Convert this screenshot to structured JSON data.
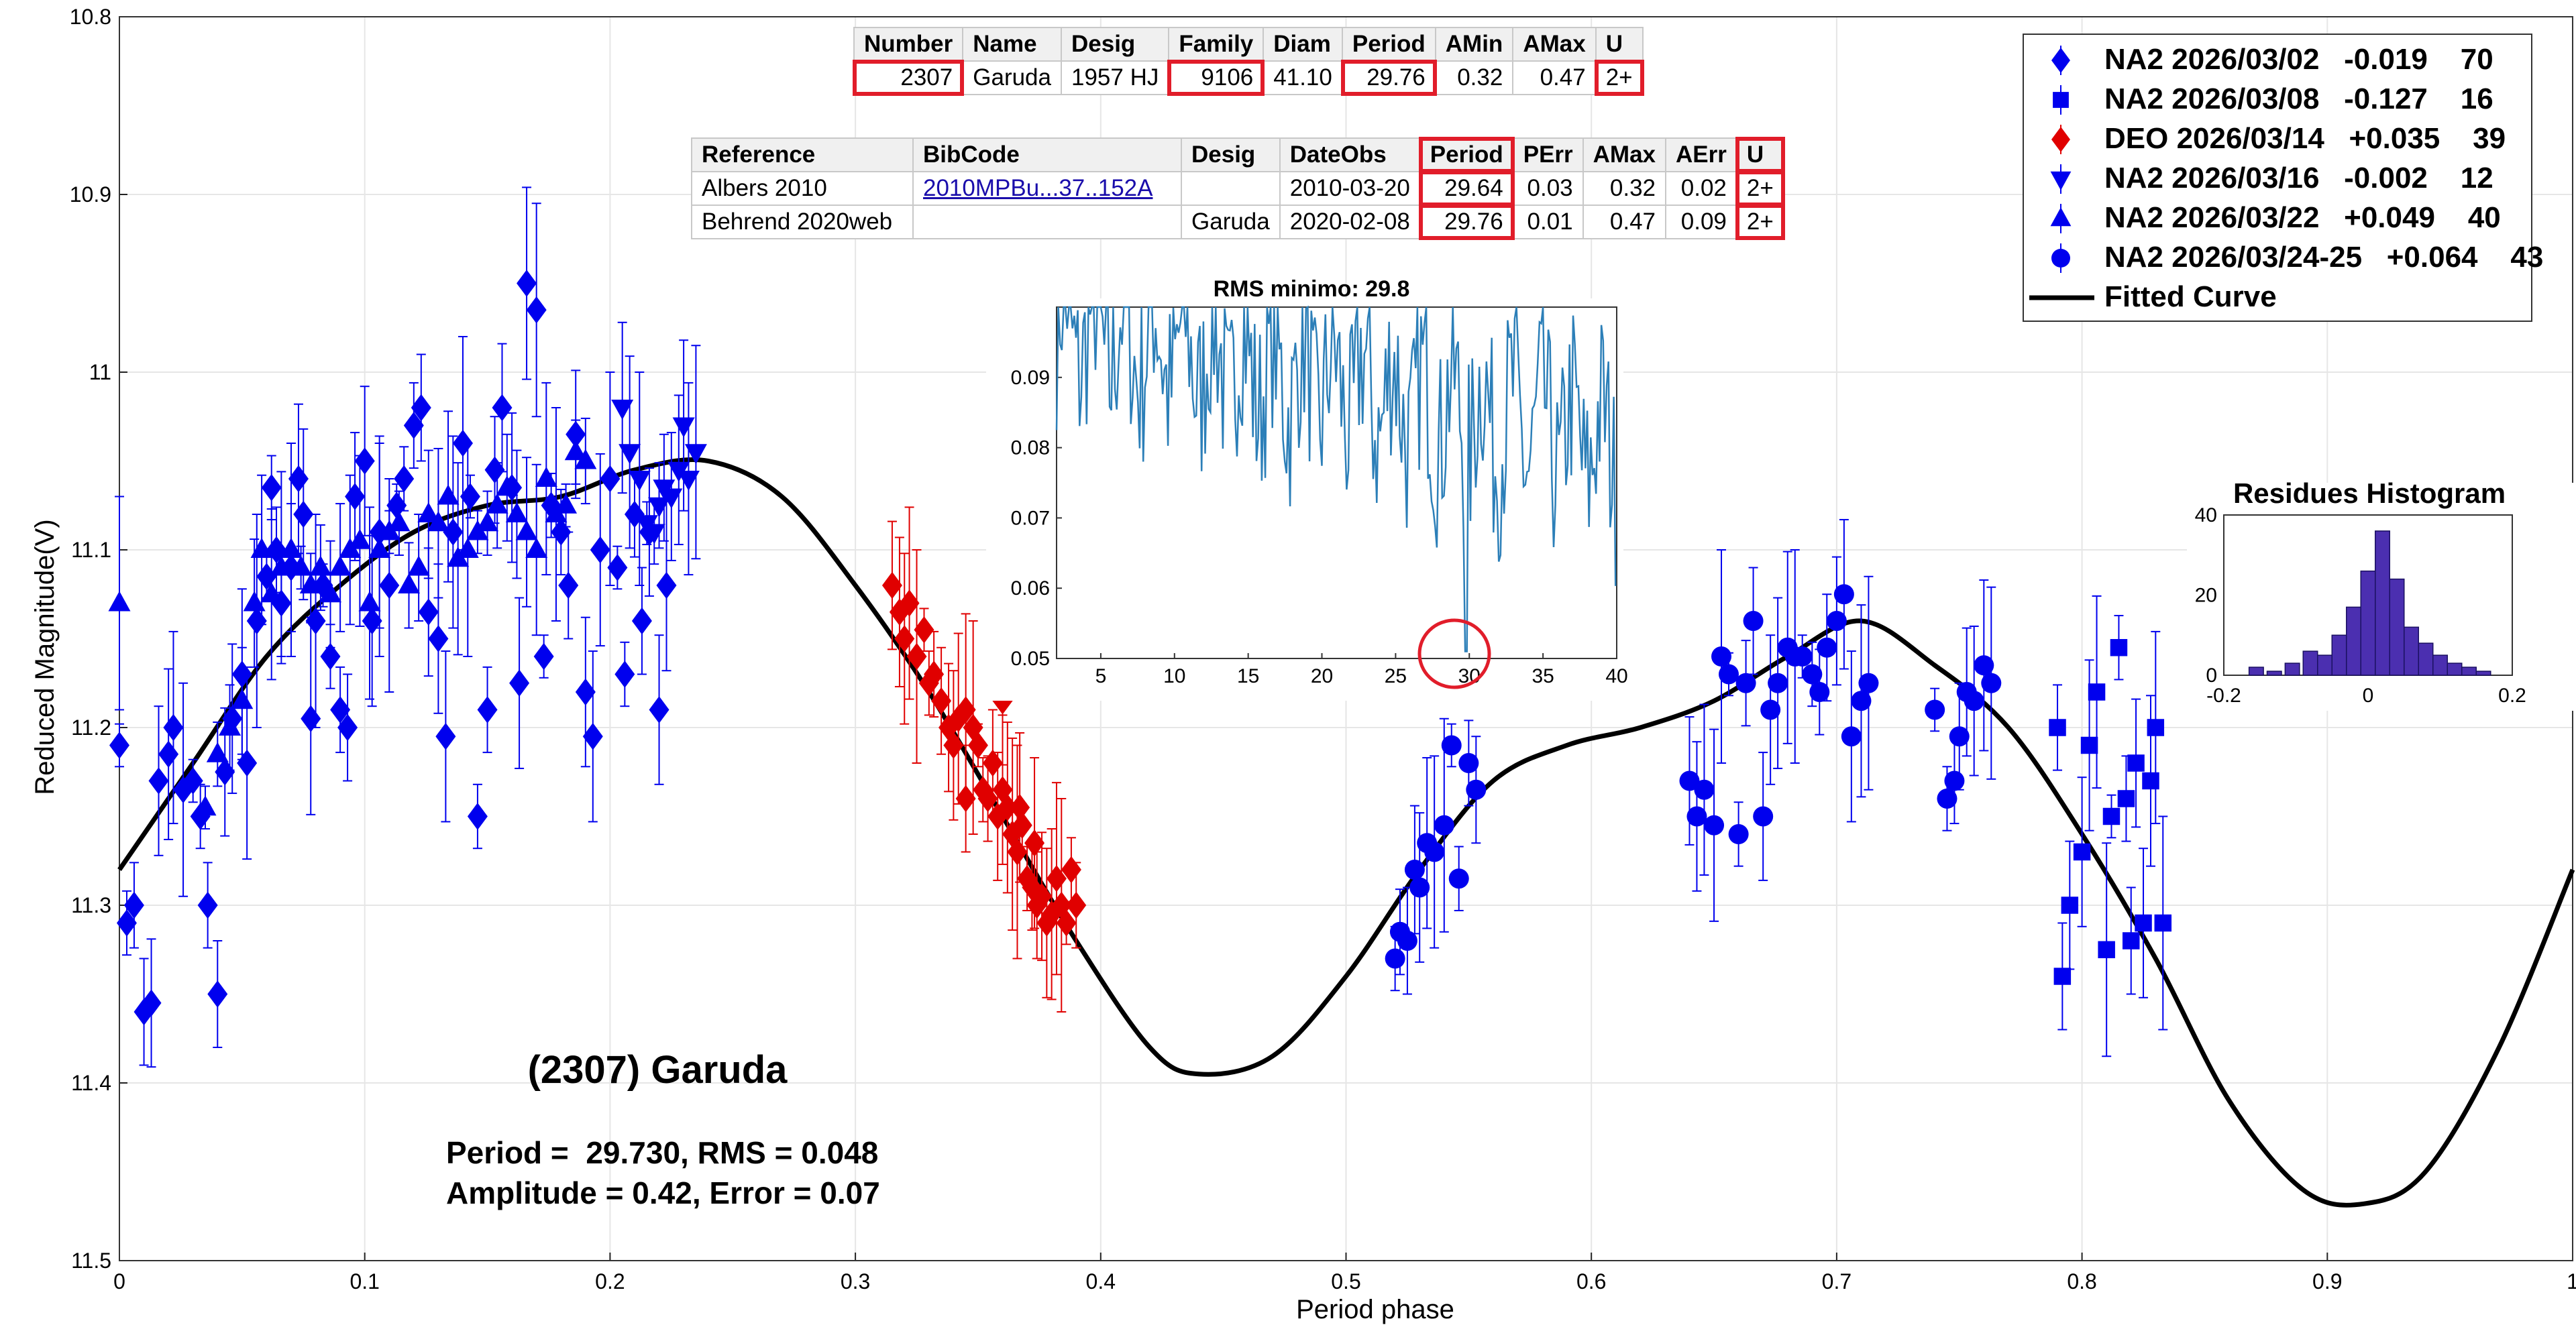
{
  "chart_data": {
    "type": "scatter",
    "title": "(2307) Garuda",
    "xlabel": "Period phase",
    "ylabel": "Reduced Magnitude(V)",
    "xlim": [
      0,
      1
    ],
    "ylim": [
      11.5,
      10.8
    ],
    "x_ticks": [
      "0",
      "0.1",
      "0.2",
      "0.3",
      "0.4",
      "0.5",
      "0.6",
      "0.7",
      "0.8",
      "0.9",
      "1"
    ],
    "y_ticks": [
      "10.8",
      "10.9",
      "11",
      "11.1",
      "11.2",
      "11.3",
      "11.4",
      "11.5"
    ],
    "stats_line1": "Period =  29.730, RMS = 0.048",
    "stats_line2": "Amplitude = 0.42, Error = 0.07",
    "fit": {
      "name": "Fitted Curve",
      "points": [
        [
          0,
          11.28
        ],
        [
          0.03,
          11.22
        ],
        [
          0.06,
          11.16
        ],
        [
          0.09,
          11.12
        ],
        [
          0.12,
          11.09
        ],
        [
          0.15,
          11.075
        ],
        [
          0.18,
          11.07
        ],
        [
          0.21,
          11.055
        ],
        [
          0.24,
          11.05
        ],
        [
          0.27,
          11.07
        ],
        [
          0.3,
          11.12
        ],
        [
          0.33,
          11.18
        ],
        [
          0.36,
          11.25
        ],
        [
          0.39,
          11.32
        ],
        [
          0.42,
          11.38
        ],
        [
          0.44,
          11.395
        ],
        [
          0.47,
          11.385
        ],
        [
          0.5,
          11.34
        ],
        [
          0.53,
          11.28
        ],
        [
          0.56,
          11.23
        ],
        [
          0.59,
          11.21
        ],
        [
          0.62,
          11.2
        ],
        [
          0.65,
          11.185
        ],
        [
          0.68,
          11.16
        ],
        [
          0.71,
          11.14
        ],
        [
          0.74,
          11.165
        ],
        [
          0.77,
          11.2
        ],
        [
          0.8,
          11.26
        ],
        [
          0.83,
          11.33
        ],
        [
          0.86,
          11.41
        ],
        [
          0.89,
          11.46
        ],
        [
          0.915,
          11.468
        ],
        [
          0.94,
          11.45
        ],
        [
          0.97,
          11.38
        ],
        [
          1.0,
          11.28
        ]
      ]
    },
    "series": [
      {
        "name": "NA2 2026/03/02",
        "offset": "-0.019",
        "n": "70",
        "marker": "diamond",
        "color": "#0000ee",
        "points": [
          [
            0.0,
            11.21
          ],
          [
            0.003,
            11.31
          ],
          [
            0.006,
            11.3
          ],
          [
            0.01,
            11.36
          ],
          [
            0.013,
            11.355
          ],
          [
            0.016,
            11.23
          ],
          [
            0.02,
            11.215
          ],
          [
            0.022,
            11.2
          ],
          [
            0.026,
            11.235
          ],
          [
            0.03,
            11.23
          ],
          [
            0.033,
            11.25
          ],
          [
            0.036,
            11.3
          ],
          [
            0.04,
            11.35
          ],
          [
            0.043,
            11.225
          ],
          [
            0.046,
            11.195
          ],
          [
            0.05,
            11.17
          ],
          [
            0.052,
            11.22
          ],
          [
            0.056,
            11.14
          ],
          [
            0.06,
            11.115
          ],
          [
            0.062,
            11.065
          ],
          [
            0.064,
            11.1
          ],
          [
            0.066,
            11.13
          ],
          [
            0.07,
            11.11
          ],
          [
            0.073,
            11.06
          ],
          [
            0.075,
            11.08
          ],
          [
            0.078,
            11.195
          ],
          [
            0.08,
            11.14
          ],
          [
            0.083,
            11.12
          ],
          [
            0.086,
            11.16
          ],
          [
            0.09,
            11.19
          ],
          [
            0.093,
            11.2
          ],
          [
            0.096,
            11.07
          ],
          [
            0.1,
            11.05
          ],
          [
            0.103,
            11.14
          ],
          [
            0.106,
            11.09
          ],
          [
            0.11,
            11.12
          ],
          [
            0.113,
            11.075
          ],
          [
            0.116,
            11.06
          ],
          [
            0.12,
            11.03
          ],
          [
            0.123,
            11.02
          ],
          [
            0.126,
            11.135
          ],
          [
            0.13,
            11.15
          ],
          [
            0.133,
            11.205
          ],
          [
            0.136,
            11.09
          ],
          [
            0.14,
            11.04
          ],
          [
            0.143,
            11.07
          ],
          [
            0.146,
            11.25
          ],
          [
            0.15,
            11.19
          ],
          [
            0.153,
            11.055
          ],
          [
            0.156,
            11.02
          ],
          [
            0.16,
            11.065
          ],
          [
            0.163,
            11.175
          ],
          [
            0.166,
            10.95
          ],
          [
            0.17,
            10.965
          ],
          [
            0.173,
            11.16
          ],
          [
            0.176,
            11.075
          ],
          [
            0.18,
            11.09
          ],
          [
            0.183,
            11.12
          ],
          [
            0.186,
            11.035
          ],
          [
            0.19,
            11.18
          ],
          [
            0.193,
            11.205
          ],
          [
            0.196,
            11.1
          ],
          [
            0.2,
            11.06
          ],
          [
            0.203,
            11.11
          ],
          [
            0.206,
            11.17
          ],
          [
            0.21,
            11.08
          ],
          [
            0.213,
            11.14
          ],
          [
            0.216,
            11.09
          ],
          [
            0.22,
            11.19
          ],
          [
            0.223,
            11.12
          ]
        ]
      },
      {
        "name": "NA2 2026/03/08",
        "offset": "-0.127",
        "n": "16",
        "marker": "square",
        "color": "#0000ee",
        "points": [
          [
            0.79,
            11.2
          ],
          [
            0.792,
            11.34
          ],
          [
            0.795,
            11.3
          ],
          [
            0.8,
            11.27
          ],
          [
            0.803,
            11.21
          ],
          [
            0.806,
            11.18
          ],
          [
            0.81,
            11.325
          ],
          [
            0.812,
            11.25
          ],
          [
            0.815,
            11.155
          ],
          [
            0.818,
            11.24
          ],
          [
            0.82,
            11.32
          ],
          [
            0.822,
            11.22
          ],
          [
            0.825,
            11.31
          ],
          [
            0.828,
            11.23
          ],
          [
            0.83,
            11.2
          ],
          [
            0.833,
            11.31
          ]
        ]
      },
      {
        "name": "DEO 2026/03/14",
        "offset": "+0.035",
        "n": "39",
        "marker": "diamond",
        "color": "#e00000",
        "points": [
          [
            0.315,
            11.12
          ],
          [
            0.318,
            11.135
          ],
          [
            0.32,
            11.15
          ],
          [
            0.322,
            11.13
          ],
          [
            0.325,
            11.16
          ],
          [
            0.328,
            11.145
          ],
          [
            0.33,
            11.175
          ],
          [
            0.332,
            11.17
          ],
          [
            0.335,
            11.185
          ],
          [
            0.338,
            11.2
          ],
          [
            0.34,
            11.21
          ],
          [
            0.342,
            11.195
          ],
          [
            0.345,
            11.19
          ],
          [
            0.348,
            11.2
          ],
          [
            0.35,
            11.21
          ],
          [
            0.352,
            11.235
          ],
          [
            0.354,
            11.24
          ],
          [
            0.356,
            11.22
          ],
          [
            0.358,
            11.25
          ],
          [
            0.36,
            11.235
          ],
          [
            0.362,
            11.245
          ],
          [
            0.364,
            11.26
          ],
          [
            0.366,
            11.27
          ],
          [
            0.368,
            11.255
          ],
          [
            0.37,
            11.285
          ],
          [
            0.372,
            11.29
          ],
          [
            0.374,
            11.3
          ],
          [
            0.376,
            11.295
          ],
          [
            0.378,
            11.31
          ],
          [
            0.38,
            11.305
          ],
          [
            0.382,
            11.285
          ],
          [
            0.384,
            11.3
          ],
          [
            0.386,
            11.31
          ],
          [
            0.388,
            11.28
          ],
          [
            0.39,
            11.3
          ],
          [
            0.345,
            11.24
          ],
          [
            0.36,
            11.185
          ],
          [
            0.367,
            11.245
          ],
          [
            0.373,
            11.265
          ]
        ]
      },
      {
        "name": "NA2 2026/03/16",
        "offset": "-0.002",
        "n": "12",
        "marker": "triangle-down",
        "color": "#0000ee",
        "points": [
          [
            0.205,
            11.02
          ],
          [
            0.208,
            11.045
          ],
          [
            0.212,
            11.06
          ],
          [
            0.215,
            11.085
          ],
          [
            0.218,
            11.09
          ],
          [
            0.22,
            11.075
          ],
          [
            0.222,
            11.065
          ],
          [
            0.225,
            11.07
          ],
          [
            0.228,
            11.055
          ],
          [
            0.23,
            11.03
          ],
          [
            0.232,
            11.06
          ],
          [
            0.235,
            11.045
          ]
        ]
      },
      {
        "name": "NA2 2026/03/22",
        "offset": "+0.049",
        "n": "40",
        "marker": "triangle",
        "color": "#0000ee",
        "points": [
          [
            0.0,
            11.13
          ],
          [
            0.035,
            11.245
          ],
          [
            0.04,
            11.215
          ],
          [
            0.045,
            11.2
          ],
          [
            0.05,
            11.185
          ],
          [
            0.055,
            11.13
          ],
          [
            0.058,
            11.1
          ],
          [
            0.062,
            11.125
          ],
          [
            0.066,
            11.11
          ],
          [
            0.07,
            11.1
          ],
          [
            0.074,
            11.11
          ],
          [
            0.078,
            11.12
          ],
          [
            0.082,
            11.11
          ],
          [
            0.086,
            11.125
          ],
          [
            0.09,
            11.11
          ],
          [
            0.094,
            11.1
          ],
          [
            0.098,
            11.095
          ],
          [
            0.102,
            11.13
          ],
          [
            0.106,
            11.1
          ],
          [
            0.11,
            11.09
          ],
          [
            0.114,
            11.085
          ],
          [
            0.118,
            11.12
          ],
          [
            0.122,
            11.11
          ],
          [
            0.126,
            11.08
          ],
          [
            0.13,
            11.085
          ],
          [
            0.134,
            11.07
          ],
          [
            0.138,
            11.105
          ],
          [
            0.142,
            11.1
          ],
          [
            0.146,
            11.09
          ],
          [
            0.15,
            11.085
          ],
          [
            0.154,
            11.075
          ],
          [
            0.158,
            11.065
          ],
          [
            0.162,
            11.08
          ],
          [
            0.166,
            11.09
          ],
          [
            0.17,
            11.1
          ],
          [
            0.174,
            11.06
          ],
          [
            0.178,
            11.08
          ],
          [
            0.182,
            11.075
          ],
          [
            0.186,
            11.045
          ],
          [
            0.19,
            11.05
          ]
        ]
      },
      {
        "name": "NA2 2026/03/24-25",
        "offset": "+0.064",
        "n": "43",
        "marker": "circle",
        "color": "#0000ee",
        "points": [
          [
            0.52,
            11.33
          ],
          [
            0.522,
            11.315
          ],
          [
            0.525,
            11.32
          ],
          [
            0.528,
            11.28
          ],
          [
            0.53,
            11.29
          ],
          [
            0.533,
            11.265
          ],
          [
            0.536,
            11.27
          ],
          [
            0.54,
            11.255
          ],
          [
            0.543,
            11.21
          ],
          [
            0.546,
            11.285
          ],
          [
            0.55,
            11.22
          ],
          [
            0.553,
            11.235
          ],
          [
            0.64,
            11.23
          ],
          [
            0.643,
            11.25
          ],
          [
            0.646,
            11.235
          ],
          [
            0.65,
            11.255
          ],
          [
            0.653,
            11.16
          ],
          [
            0.656,
            11.17
          ],
          [
            0.66,
            11.26
          ],
          [
            0.663,
            11.175
          ],
          [
            0.666,
            11.14
          ],
          [
            0.67,
            11.25
          ],
          [
            0.673,
            11.19
          ],
          [
            0.676,
            11.175
          ],
          [
            0.68,
            11.155
          ],
          [
            0.683,
            11.16
          ],
          [
            0.686,
            11.16
          ],
          [
            0.69,
            11.17
          ],
          [
            0.693,
            11.18
          ],
          [
            0.696,
            11.155
          ],
          [
            0.7,
            11.14
          ],
          [
            0.703,
            11.125
          ],
          [
            0.706,
            11.205
          ],
          [
            0.71,
            11.185
          ],
          [
            0.713,
            11.175
          ],
          [
            0.74,
            11.19
          ],
          [
            0.745,
            11.24
          ],
          [
            0.748,
            11.23
          ],
          [
            0.75,
            11.205
          ],
          [
            0.753,
            11.18
          ],
          [
            0.756,
            11.185
          ],
          [
            0.76,
            11.165
          ],
          [
            0.763,
            11.175
          ]
        ]
      }
    ],
    "inset_table_1": {
      "headers": [
        "Number",
        "Name",
        "Desig",
        "Family",
        "Diam",
        "Period",
        "AMin",
        "AMax",
        "U"
      ],
      "row": [
        "2307",
        "Garuda",
        "1957 HJ",
        "9106",
        "41.10",
        "29.76",
        "0.32",
        "0.47",
        "2+"
      ]
    },
    "inset_table_2": {
      "headers": [
        "Reference",
        "BibCode",
        "Desig",
        "DateObs",
        "Period",
        "PErr",
        "AMax",
        "AErr",
        "U"
      ],
      "rows": [
        [
          "Albers 2010",
          "2010MPBu...37..152A",
          "",
          "2010-03-20",
          "29.64",
          "0.03",
          "0.32",
          "0.02",
          "2+"
        ],
        [
          "Behrend 2020web",
          "",
          "Garuda",
          "2020-02-08",
          "29.76",
          "0.01",
          "0.47",
          "0.09",
          "2+"
        ]
      ]
    },
    "periodogram": {
      "type": "line",
      "title": "RMS minimo: 29.8",
      "xlim": [
        2,
        40
      ],
      "ylim": [
        0.05,
        0.1
      ],
      "x_ticks": [
        "5",
        "10",
        "15",
        "20",
        "25",
        "30",
        "35",
        "40"
      ],
      "y_ticks": [
        "0.05",
        "0.06",
        "0.07",
        "0.08",
        "0.09"
      ],
      "minimum": [
        29.8,
        0.05
      ]
    },
    "histogram": {
      "type": "bar",
      "title": "Residues Histogram",
      "xlim": [
        -0.2,
        0.2
      ],
      "ylim": [
        0,
        40
      ],
      "x_ticks": [
        "-0.2",
        "0",
        "0.2"
      ],
      "y_ticks": [
        "0",
        "20",
        "40"
      ],
      "bin_centers": [
        -0.155,
        -0.13,
        -0.105,
        -0.08,
        -0.06,
        -0.04,
        -0.02,
        0.0,
        0.02,
        0.04,
        0.06,
        0.08,
        0.1,
        0.12,
        0.14,
        0.16
      ],
      "counts": [
        2,
        1,
        3,
        6,
        5,
        10,
        17,
        26,
        36,
        24,
        12,
        8,
        5,
        3,
        2,
        1
      ]
    }
  },
  "colors": {
    "blue": "#0000ee",
    "red": "#e00000",
    "fit": "#000000",
    "grid": "#e6e6e6",
    "highlight": "#e11d2a",
    "periodogram_line": "#2c7fb8"
  }
}
